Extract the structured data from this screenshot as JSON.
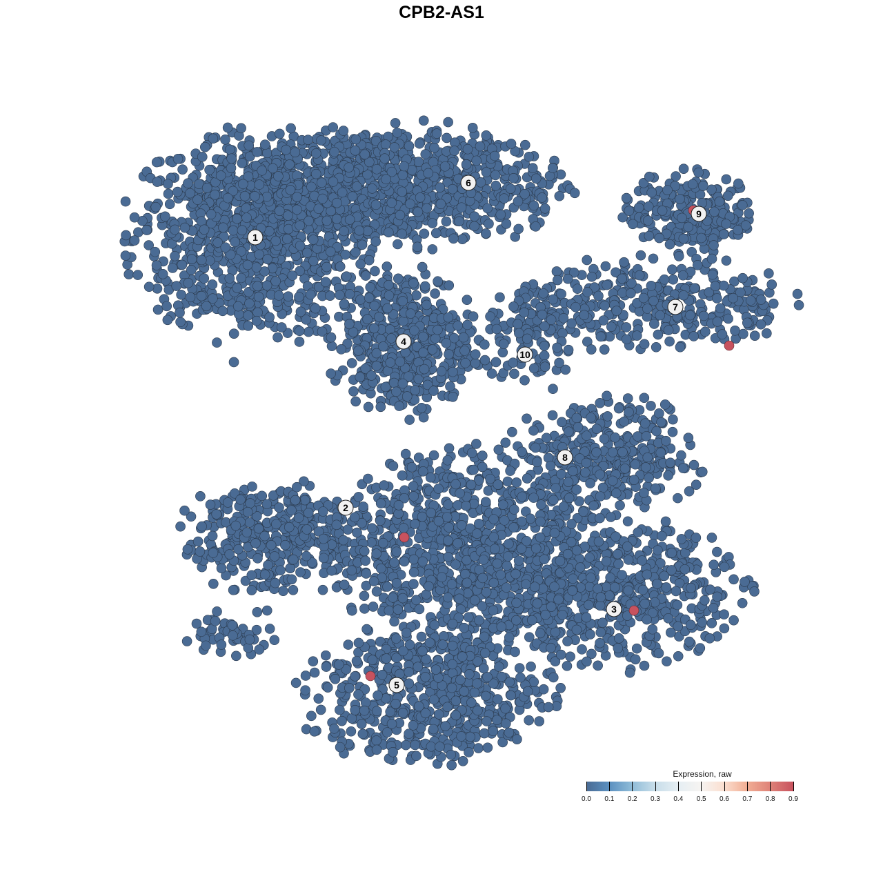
{
  "chart_data": {
    "type": "scatter",
    "title": "CPB2-AS1",
    "xlabel": "",
    "ylabel": "",
    "grid": false,
    "axes_visible": false,
    "xlim": [
      -64,
      64
    ],
    "ylim": [
      -64,
      64
    ],
    "point_color_low": "#4a6b94",
    "point_color_high": "#c8525e",
    "point_outline": "#2b3a4d",
    "clusters": [
      {
        "label": "1",
        "center": [
          -27,
          29.6
        ],
        "spread": [
          12,
          10
        ],
        "n": 900,
        "value": 0.0
      },
      {
        "label": "6",
        "center": [
          -8,
          37
        ],
        "spread": [
          17,
          6
        ],
        "n": 900,
        "value": 0.0,
        "label_pos": [
          3.9,
          37.5
        ]
      },
      {
        "label": "4",
        "center": [
          -5.5,
          14.5
        ],
        "spread": [
          7,
          7
        ],
        "n": 450,
        "value": 0.0
      },
      {
        "label": "9",
        "center": [
          36,
          33
        ],
        "spread": [
          6.5,
          4
        ],
        "n": 220,
        "value": 0.0,
        "label_pos": [
          37.3,
          33
        ]
      },
      {
        "label": "7",
        "center": [
          31,
          20
        ],
        "spread": [
          13,
          4.5
        ],
        "n": 320,
        "value": 0.0,
        "label_pos": [
          33.9,
          19.5
        ]
      },
      {
        "label": "10",
        "center": [
          13,
          15
        ],
        "spread": [
          4.5,
          5
        ],
        "n": 110,
        "value": 0.0,
        "label_pos": [
          12.1,
          12.6
        ]
      },
      {
        "label": "8",
        "center": [
          24,
          -2
        ],
        "spread": [
          9,
          5.5
        ],
        "n": 320,
        "value": 0.0,
        "label_pos": [
          17.9,
          -2.3
        ]
      },
      {
        "label": "2",
        "center": [
          -24,
          -14
        ],
        "spread": [
          9,
          5.5
        ],
        "n": 380,
        "value": 0.0,
        "label_pos": [
          -13.9,
          -9.6
        ]
      },
      {
        "label": "",
        "center": [
          4,
          -16
        ],
        "spread": [
          13,
          10
        ],
        "n": 950,
        "value": 0.0
      },
      {
        "label": "3",
        "center": [
          26,
          -22
        ],
        "spread": [
          12,
          7
        ],
        "n": 520,
        "value": 0.0,
        "label_pos": [
          25,
          -24.3
        ]
      },
      {
        "label": "5",
        "center": [
          -2,
          -37
        ],
        "spread": [
          12,
          6.5
        ],
        "n": 520,
        "value": 0.0,
        "label_pos": [
          -6.5,
          -35.3
        ]
      },
      {
        "label": "",
        "center": [
          -29,
          -28
        ],
        "spread": [
          5,
          2.5
        ],
        "n": 50,
        "value": 0.0
      }
    ],
    "expressing_points": [
      {
        "x": -5.4,
        "y": -13.9,
        "value": 0.9
      },
      {
        "x": 27.9,
        "y": -24.5,
        "value": 0.9
      },
      {
        "x": -10.3,
        "y": -34,
        "value": 0.9
      },
      {
        "x": 41.7,
        "y": 13.9,
        "value": 0.9
      },
      {
        "x": 36.5,
        "y": 33.5,
        "value": 0.9
      }
    ],
    "legend": {
      "title": "Expression, raw",
      "position": "bottom-right",
      "ticks": [
        "0.0",
        "0.1",
        "0.2",
        "0.3",
        "0.4",
        "0.5",
        "0.6",
        "0.7",
        "0.8",
        "0.9"
      ],
      "range": [
        0,
        0.9
      ]
    }
  }
}
